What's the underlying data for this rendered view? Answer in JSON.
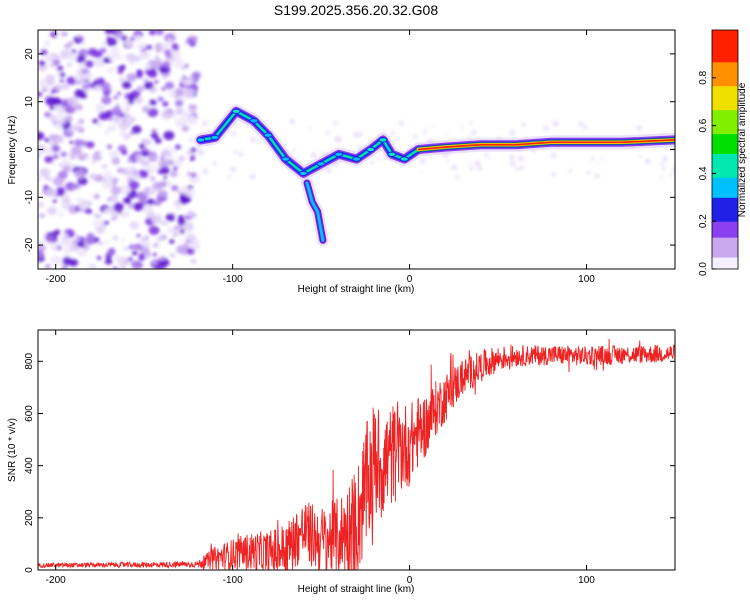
{
  "title": "S199.2025.356.20.32.G08",
  "colors": {
    "snr_line": "#ee2222",
    "ridge_low": "#6a1bd8",
    "scatter": "#7a2ee0",
    "colormap": [
      "#f0e8fa",
      "#c9a8f0",
      "#8a3ff0",
      "#2020e8",
      "#00c0ff",
      "#00e8c0",
      "#00e000",
      "#a0f000",
      "#f0e000",
      "#ff9000",
      "#ff2000",
      "#ff1080"
    ]
  },
  "chart_data": [
    {
      "type": "heatmap",
      "name": "spectrogram",
      "xlabel": "Height of straight line (km)",
      "ylabel": "Frequency (Hz)",
      "xlim": [
        -210,
        150
      ],
      "ylim": [
        -25,
        25
      ],
      "x_ticks": [
        -200,
        -100,
        0,
        100
      ],
      "y_ticks": [
        -20,
        -10,
        0,
        10,
        20
      ],
      "colorbar": {
        "label": "Normalized spectral amplitude",
        "range": [
          0,
          1
        ],
        "ticks": [
          0.0,
          0.2,
          0.4,
          0.6,
          0.8
        ]
      },
      "noise_region": {
        "x_range": [
          -210,
          -120
        ],
        "y_range": [
          -25,
          25
        ]
      },
      "ridge_main": [
        {
          "x": -118,
          "y": 2,
          "a": 0.35
        },
        {
          "x": -110,
          "y": 2.5,
          "a": 0.4
        },
        {
          "x": -98,
          "y": 8,
          "a": 0.45
        },
        {
          "x": -88,
          "y": 6,
          "a": 0.4
        },
        {
          "x": -80,
          "y": 3,
          "a": 0.35
        },
        {
          "x": -70,
          "y": -2,
          "a": 0.35
        },
        {
          "x": -60,
          "y": -5,
          "a": 0.3
        },
        {
          "x": -50,
          "y": -3,
          "a": 0.3
        },
        {
          "x": -40,
          "y": -1,
          "a": 0.35
        },
        {
          "x": -30,
          "y": -2,
          "a": 0.4
        },
        {
          "x": -22,
          "y": 0,
          "a": 0.45
        },
        {
          "x": -15,
          "y": 2,
          "a": 0.5
        },
        {
          "x": -10,
          "y": -1,
          "a": 0.45
        },
        {
          "x": -3,
          "y": -2,
          "a": 0.45
        },
        {
          "x": 5,
          "y": 0,
          "a": 0.6
        },
        {
          "x": 20,
          "y": 0.5,
          "a": 0.75
        },
        {
          "x": 40,
          "y": 1,
          "a": 0.85
        },
        {
          "x": 60,
          "y": 1,
          "a": 0.9
        },
        {
          "x": 80,
          "y": 1.5,
          "a": 0.8
        },
        {
          "x": 100,
          "y": 1.5,
          "a": 0.8
        },
        {
          "x": 120,
          "y": 1.5,
          "a": 0.7
        },
        {
          "x": 150,
          "y": 2,
          "a": 0.7
        }
      ],
      "ridge_branch": [
        {
          "x": -58,
          "y": -7,
          "a": 0.25
        },
        {
          "x": -55,
          "y": -11,
          "a": 0.3
        },
        {
          "x": -52,
          "y": -13,
          "a": 0.35
        },
        {
          "x": -49,
          "y": -19,
          "a": 0.35
        }
      ]
    },
    {
      "type": "line",
      "name": "snr",
      "xlabel": "Height of straight line (km)",
      "ylabel": "SNR (10 * v/v)",
      "xlim": [
        -210,
        150
      ],
      "ylim": [
        0,
        920
      ],
      "x_ticks": [
        -200,
        -100,
        0,
        100
      ],
      "y_ticks": [
        0,
        200,
        400,
        600,
        800
      ],
      "series": [
        {
          "name": "SNR",
          "trend_x": [
            -210,
            -150,
            -120,
            -110,
            -100,
            -90,
            -80,
            -70,
            -60,
            -50,
            -40,
            -30,
            -25,
            -20,
            -15,
            -10,
            -5,
            0,
            5,
            10,
            15,
            20,
            25,
            30,
            40,
            50,
            60,
            80,
            100,
            120,
            150
          ],
          "trend_y": [
            18,
            20,
            22,
            45,
            60,
            70,
            60,
            80,
            150,
            110,
            130,
            180,
            300,
            420,
            400,
            440,
            470,
            480,
            530,
            560,
            620,
            660,
            700,
            740,
            780,
            810,
            820,
            825,
            820,
            825,
            830
          ],
          "noise_amp_x": [
            -210,
            -120,
            -110,
            -60,
            -40,
            -25,
            -10,
            10,
            30,
            60,
            150
          ],
          "noise_amp_y": [
            8,
            12,
            45,
            120,
            150,
            250,
            200,
            120,
            70,
            40,
            35
          ]
        }
      ]
    }
  ]
}
